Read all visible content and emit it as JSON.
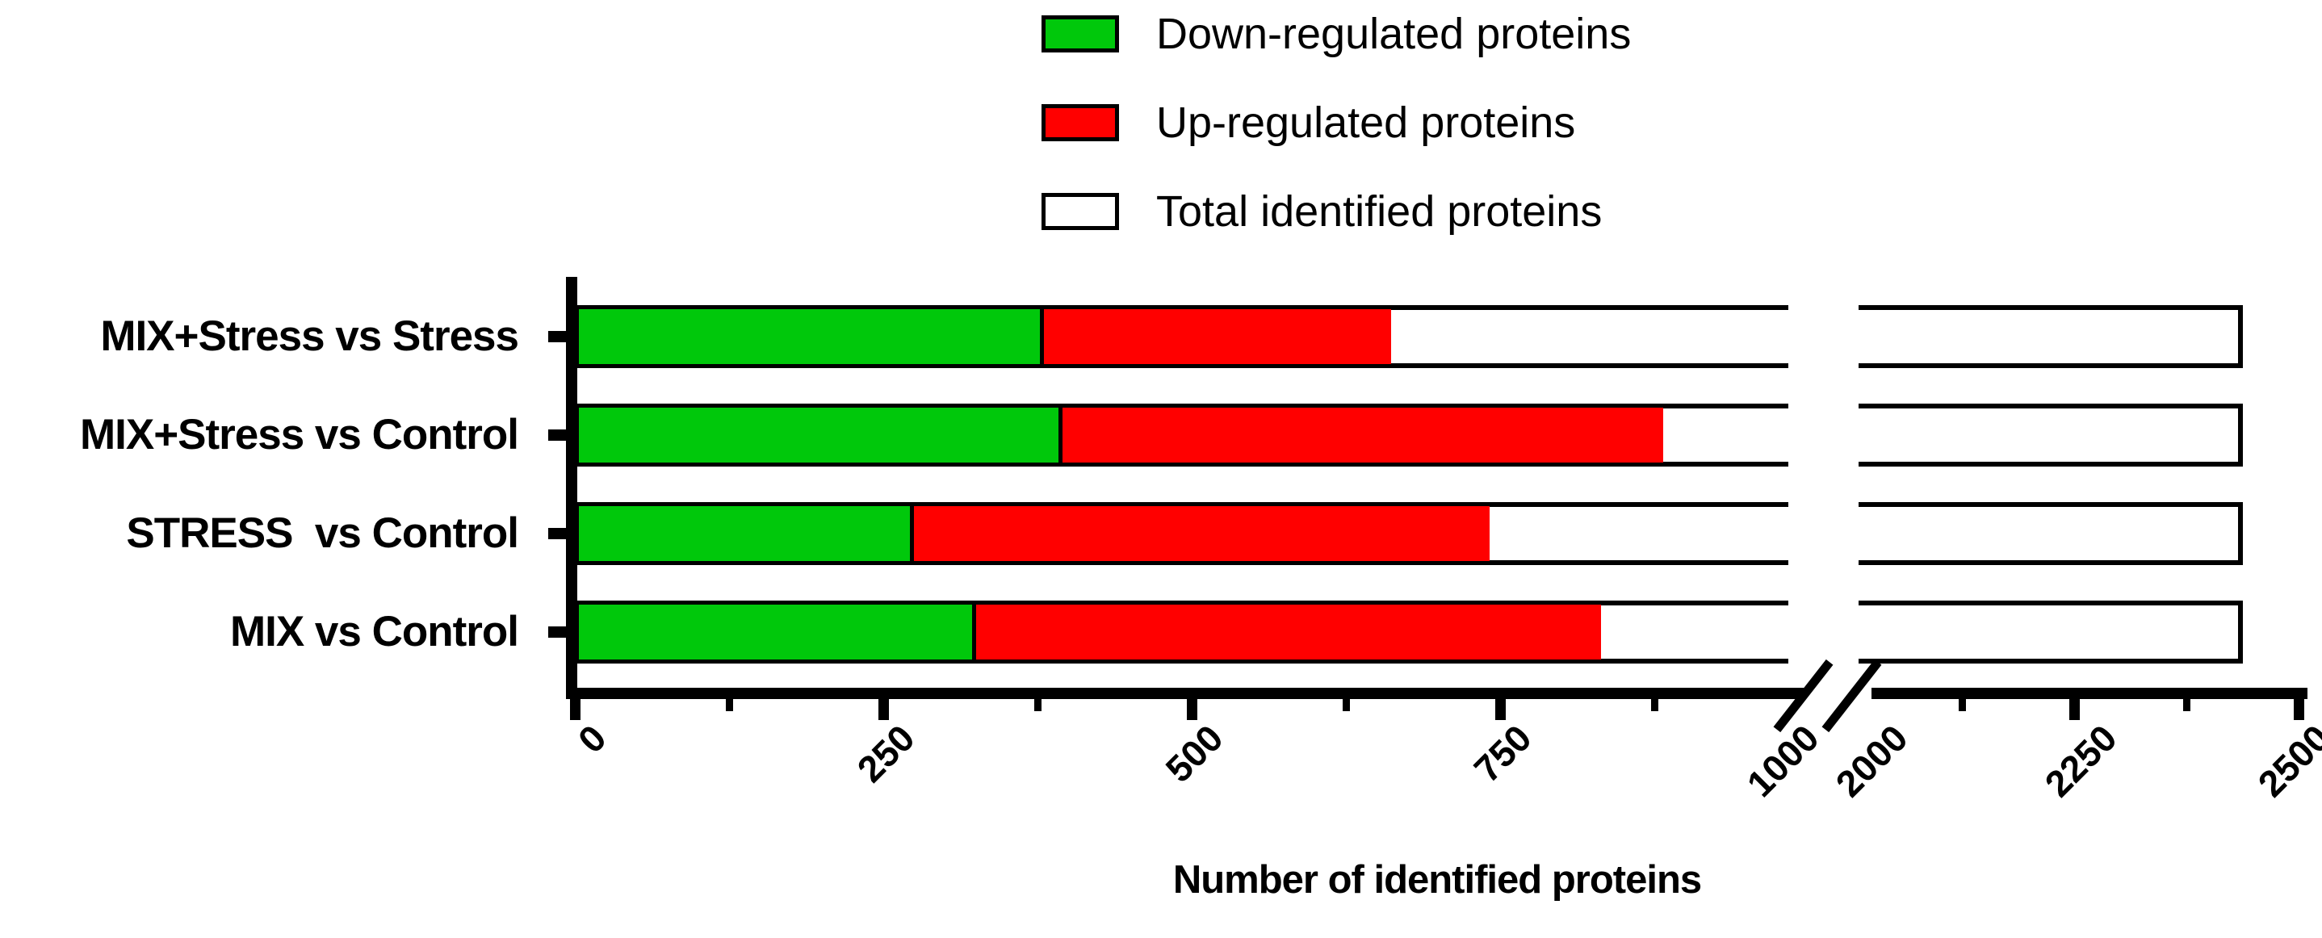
{
  "legend": {
    "items": [
      {
        "label": "Down-regulated proteins",
        "color": "#00C80B"
      },
      {
        "label": "Up-regulated proteins",
        "color": "#FF0000"
      },
      {
        "label": "Total identified proteins",
        "color": "#FFFFFF"
      }
    ]
  },
  "chart_data": {
    "type": "bar",
    "orientation": "horizontal",
    "stacked": true,
    "title": "",
    "xlabel": "Number of identified proteins",
    "ylabel": "",
    "categories": [
      "MIX+Stress vs Stress",
      "MIX+Stress vs Control",
      "STRESS  vs Control",
      "MIX vs Control"
    ],
    "series": [
      {
        "name": "Down-regulated proteins",
        "color": "#00C80B",
        "values": [
          380,
          395,
          275,
          325
        ]
      },
      {
        "name": "Up-regulated proteins",
        "color": "#FF0000",
        "values": [
          285,
          490,
          470,
          510
        ]
      },
      {
        "name": "Total identified proteins",
        "color": "#FFFFFF",
        "values": [
          2430,
          2430,
          2430,
          2430
        ]
      }
    ],
    "x_axis": {
      "has_break": true,
      "break_between": [
        1000,
        2000
      ],
      "tick_labels": [
        "0",
        "250",
        "500",
        "750",
        "1000",
        "2000",
        "2250",
        "2500"
      ],
      "major_ticks": [
        0,
        250,
        500,
        750,
        1000,
        2000,
        2250,
        2500
      ],
      "minor_tick_interval": 125,
      "left_range": [
        0,
        1000
      ],
      "right_range": [
        2000,
        2500
      ],
      "grid": false
    },
    "legend_position": "top-center",
    "bar_outline_color": "#000000"
  }
}
